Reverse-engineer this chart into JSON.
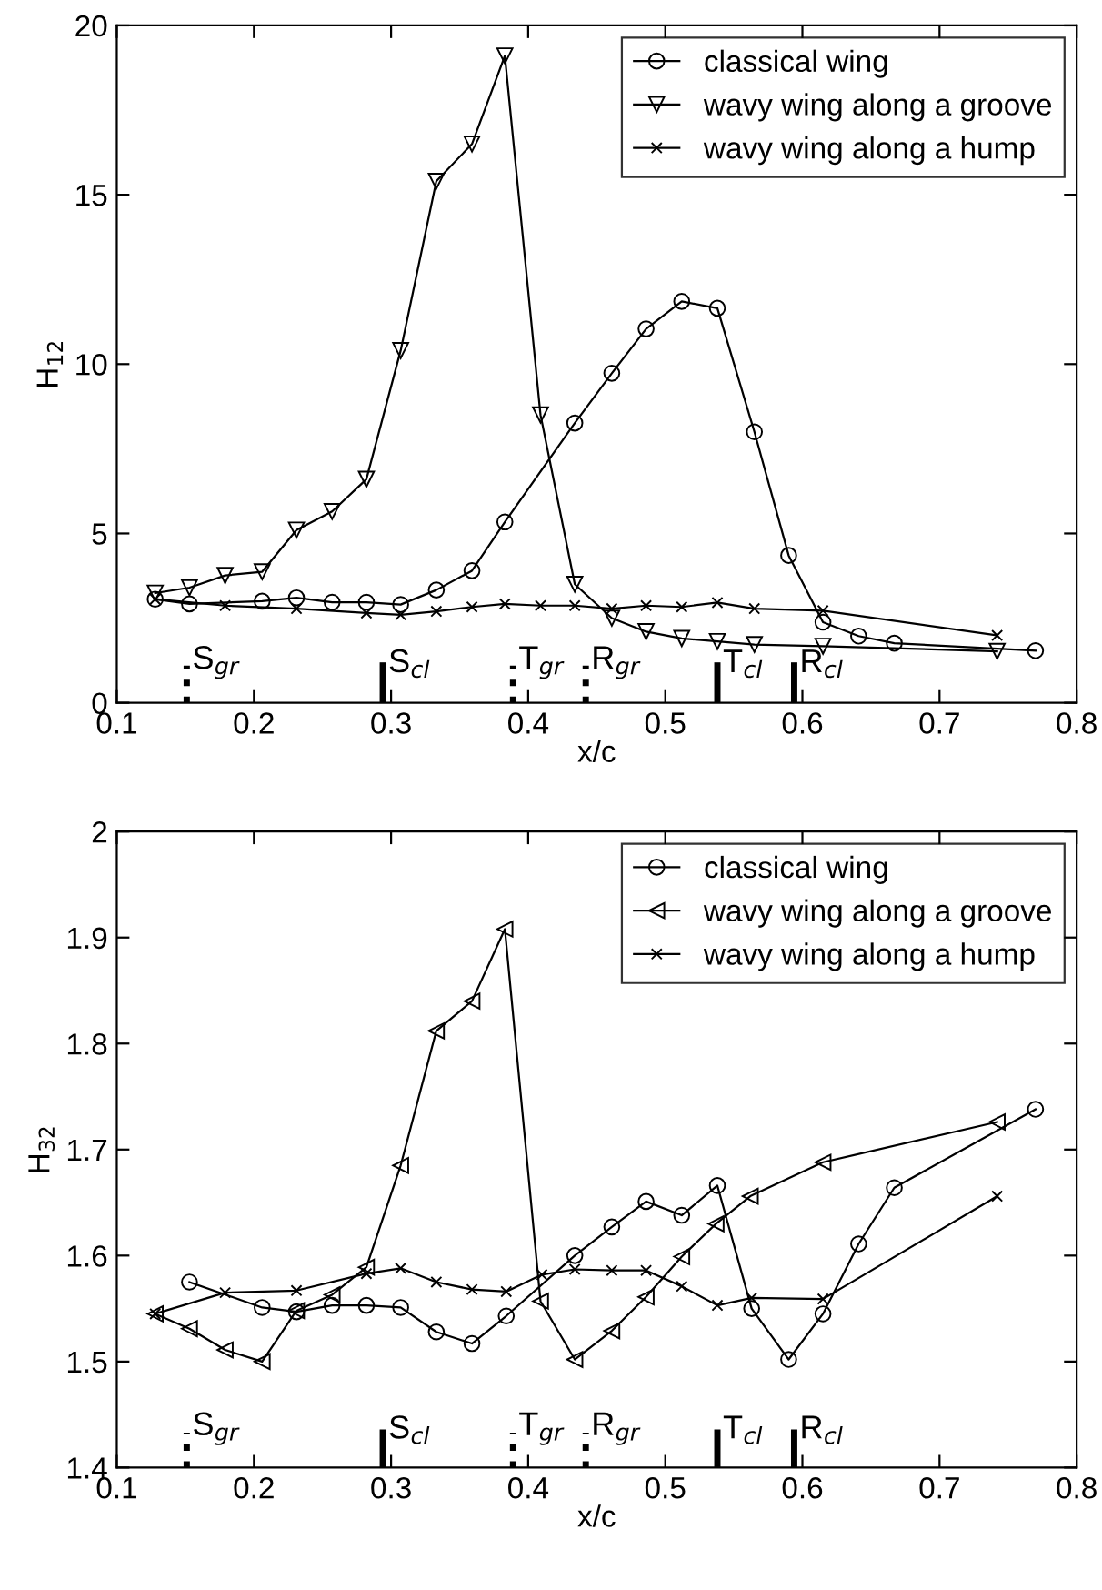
{
  "chart_data": [
    {
      "type": "line",
      "xlabel": "x/c",
      "ylabel": "H$_{12}$",
      "xlim": [
        0.1,
        0.8
      ],
      "ylim": [
        0,
        20
      ],
      "xticks": [
        0.1,
        0.2,
        0.3,
        0.4,
        0.5,
        0.6,
        0.7,
        0.8
      ],
      "yticks": [
        0,
        5,
        10,
        15,
        20
      ],
      "grid": false,
      "legend": "top right",
      "line_style": "solid",
      "series": [
        {
          "name": "classical wing",
          "color": "#000000",
          "marker": "circle",
          "x": [
            0.128,
            0.153,
            0.206,
            0.231,
            0.257,
            0.282,
            0.307,
            0.333,
            0.359,
            0.383,
            0.434,
            0.461,
            0.486,
            0.512,
            0.538,
            0.565,
            0.59,
            0.615,
            0.641,
            0.667,
            0.77
          ],
          "values": [
            3.06,
            2.92,
            3.0,
            3.1,
            2.97,
            2.97,
            2.9,
            3.33,
            3.9,
            5.34,
            8.26,
            9.73,
            11.04,
            11.85,
            11.65,
            8.0,
            4.35,
            2.38,
            1.97,
            1.76,
            1.54
          ]
        },
        {
          "name": "wavy wing along a groove",
          "color": "#000000",
          "marker": "triangle-down",
          "x": [
            0.128,
            0.153,
            0.179,
            0.206,
            0.231,
            0.257,
            0.282,
            0.307,
            0.333,
            0.359,
            0.383,
            0.409,
            0.434,
            0.461,
            0.486,
            0.512,
            0.538,
            0.565,
            0.615,
            0.742
          ],
          "values": [
            3.24,
            3.4,
            3.76,
            3.87,
            5.1,
            5.65,
            6.6,
            10.4,
            15.4,
            16.5,
            19.1,
            8.5,
            3.5,
            2.5,
            2.1,
            1.9,
            1.81,
            1.72,
            1.67,
            1.52
          ]
        },
        {
          "name": "wavy wing along a hump",
          "color": "#000000",
          "marker": "cross",
          "x": [
            0.128,
            0.179,
            0.231,
            0.282,
            0.307,
            0.333,
            0.359,
            0.383,
            0.409,
            0.434,
            0.461,
            0.486,
            0.512,
            0.538,
            0.565,
            0.615,
            0.742
          ],
          "values": [
            3.06,
            2.87,
            2.78,
            2.65,
            2.6,
            2.7,
            2.83,
            2.92,
            2.87,
            2.87,
            2.78,
            2.87,
            2.83,
            2.96,
            2.78,
            2.72,
            1.99
          ]
        }
      ],
      "ref_lines": [
        {
          "axis": "x",
          "value": 0.151,
          "label": "S$_{gr}$",
          "line_style": "dotted"
        },
        {
          "axis": "x",
          "value": 0.294,
          "label": "S$_{cl}$",
          "line_style": "solid"
        },
        {
          "axis": "x",
          "value": 0.389,
          "label": "T$_{gr}$",
          "line_style": "dotted"
        },
        {
          "axis": "x",
          "value": 0.442,
          "label": "R$_{gr}$",
          "line_style": "dotted"
        },
        {
          "axis": "x",
          "value": 0.538,
          "label": "T$_{cl}$",
          "line_style": "solid"
        },
        {
          "axis": "x",
          "value": 0.594,
          "label": "R$_{cl}$",
          "line_style": "solid"
        }
      ]
    },
    {
      "type": "line",
      "xlabel": "x/c",
      "ylabel": "H$_{32}$",
      "xlim": [
        0.1,
        0.8
      ],
      "ylim": [
        1.4,
        2
      ],
      "xticks": [
        0.1,
        0.2,
        0.3,
        0.4,
        0.5,
        0.6,
        0.7,
        0.8
      ],
      "yticks": [
        1.4,
        1.5,
        1.6,
        1.7,
        1.8,
        1.9,
        2
      ],
      "grid": false,
      "legend": "top right",
      "line_style": "solid",
      "series": [
        {
          "name": "classical wing",
          "color": "#000000",
          "marker": "circle",
          "x": [
            0.153,
            0.206,
            0.231,
            0.257,
            0.282,
            0.307,
            0.333,
            0.359,
            0.384,
            0.434,
            0.461,
            0.486,
            0.512,
            0.538,
            0.563,
            0.59,
            0.615,
            0.641,
            0.667,
            0.77
          ],
          "values": [
            1.575,
            1.551,
            1.547,
            1.553,
            1.553,
            1.551,
            1.528,
            1.517,
            1.543,
            1.6,
            1.627,
            1.651,
            1.638,
            1.666,
            1.55,
            1.502,
            1.545,
            1.611,
            1.664,
            1.738
          ]
        },
        {
          "name": "wavy wing along a groove",
          "color": "#000000",
          "marker": "triangle-left",
          "x": [
            0.128,
            0.153,
            0.179,
            0.206,
            0.231,
            0.257,
            0.282,
            0.307,
            0.333,
            0.359,
            0.383,
            0.409,
            0.434,
            0.461,
            0.486,
            0.512,
            0.537,
            0.562,
            0.615,
            0.742
          ],
          "values": [
            1.545,
            1.531,
            1.511,
            1.5,
            1.548,
            1.563,
            1.589,
            1.685,
            1.812,
            1.84,
            1.908,
            1.557,
            1.502,
            1.529,
            1.561,
            1.599,
            1.63,
            1.656,
            1.688,
            1.726
          ]
        },
        {
          "name": "wavy wing along a hump",
          "color": "#000000",
          "marker": "cross",
          "x": [
            0.128,
            0.179,
            0.231,
            0.282,
            0.307,
            0.333,
            0.359,
            0.384,
            0.41,
            0.434,
            0.461,
            0.486,
            0.512,
            0.538,
            0.563,
            0.615,
            0.742
          ],
          "values": [
            1.545,
            1.565,
            1.567,
            1.583,
            1.588,
            1.575,
            1.568,
            1.566,
            1.582,
            1.587,
            1.586,
            1.586,
            1.571,
            1.553,
            1.56,
            1.559,
            1.656
          ]
        }
      ],
      "ref_lines": [
        {
          "axis": "x",
          "value": 0.151,
          "label": "S$_{gr}$",
          "line_style": "dotted"
        },
        {
          "axis": "x",
          "value": 0.294,
          "label": "S$_{cl}$",
          "line_style": "solid"
        },
        {
          "axis": "x",
          "value": 0.389,
          "label": "T$_{gr}$",
          "line_style": "dotted"
        },
        {
          "axis": "x",
          "value": 0.442,
          "label": "R$_{gr}$",
          "line_style": "dotted"
        },
        {
          "axis": "x",
          "value": 0.538,
          "label": "T$_{cl}$",
          "line_style": "solid"
        },
        {
          "axis": "x",
          "value": 0.594,
          "label": "R$_{cl}$",
          "line_style": "solid"
        }
      ]
    }
  ]
}
